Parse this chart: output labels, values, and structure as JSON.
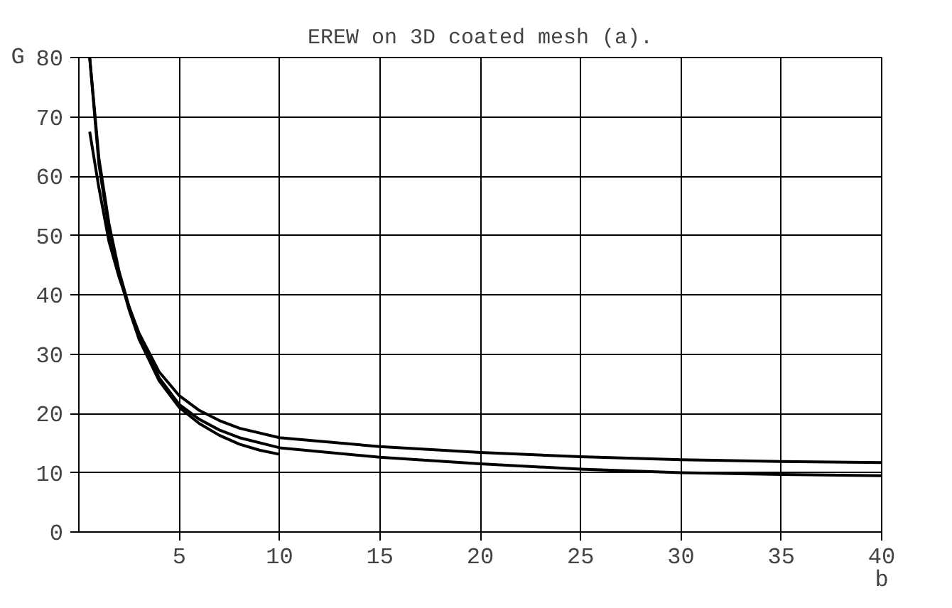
{
  "chart_data": {
    "type": "line",
    "title": "EREW on 3D coated mesh (a).",
    "xlabel": "b",
    "ylabel": "G",
    "xlim": [
      0,
      40
    ],
    "ylim": [
      0,
      80
    ],
    "xticks": [
      5,
      10,
      15,
      20,
      25,
      30,
      35,
      40
    ],
    "yticks": [
      0,
      10,
      20,
      30,
      40,
      50,
      60,
      70,
      80
    ],
    "grid": true,
    "marker": "none",
    "line_style": "solid",
    "series": [
      {
        "color": "#000000",
        "x": [
          0.54,
          1,
          1.5,
          2,
          2.5,
          3,
          4,
          5,
          6,
          7,
          8,
          10,
          15,
          20,
          25,
          30,
          35,
          40
        ],
        "values": [
          67.5,
          58,
          49,
          43,
          38,
          33.5,
          27,
          23,
          20.5,
          18.8,
          17.5,
          15.9,
          14.4,
          13.4,
          12.7,
          12.2,
          11.9,
          11.7
        ]
      },
      {
        "color": "#000000",
        "x": [
          0.54,
          1,
          1.5,
          2,
          2.5,
          3,
          4,
          5,
          6,
          7,
          8,
          10,
          15,
          20,
          25,
          30,
          35,
          40
        ],
        "values": [
          80,
          63,
          52,
          44,
          38,
          33,
          26,
          21.5,
          19,
          17.2,
          15.9,
          14.2,
          12.6,
          11.5,
          10.6,
          10.0,
          9.7,
          9.5
        ]
      },
      {
        "color": "#000000",
        "x": [
          0.54,
          1,
          1.5,
          2,
          2.5,
          3,
          4,
          5,
          6,
          7,
          8,
          9,
          10
        ],
        "values": [
          80,
          62,
          51,
          43.5,
          37.5,
          32.5,
          25.5,
          21,
          18.3,
          16.3,
          14.8,
          13.8,
          13.1
        ]
      }
    ]
  }
}
